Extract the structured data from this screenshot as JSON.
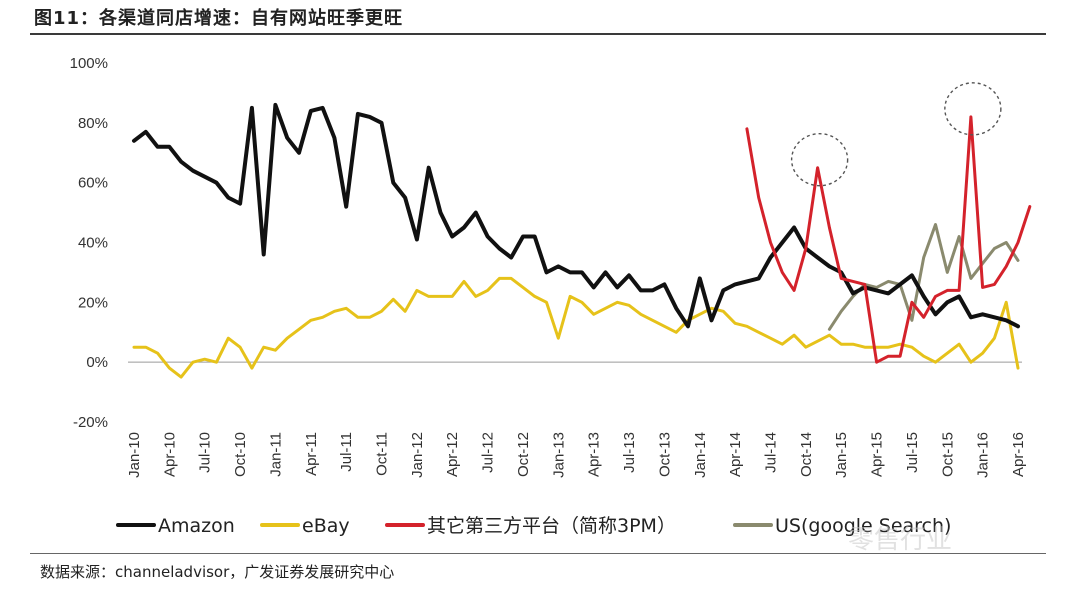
{
  "header": {
    "title": "图11：各渠道同店增速：自有网站旺季更旺"
  },
  "footer": {
    "source": "数据来源：channeladvisor，广发证券发展研究中心"
  },
  "chart_data": {
    "type": "line",
    "ylim": [
      -20,
      100
    ],
    "yticks": [
      -20,
      0,
      20,
      40,
      60,
      80,
      100
    ],
    "ytick_labels": [
      "-20%",
      "0%",
      "20%",
      "40%",
      "60%",
      "80%",
      "100%"
    ],
    "x_start_month_index": 0,
    "x_tick_every": 3,
    "x_tick_labels": [
      "Jan-10",
      "Apr-10",
      "Jul-10",
      "Oct-10",
      "Jan-11",
      "Apr-11",
      "Jul-11",
      "Oct-11",
      "Jan-12",
      "Apr-12",
      "Jul-12",
      "Oct-12",
      "Jan-13",
      "Apr-13",
      "Jul-13",
      "Oct-13",
      "Jan-14",
      "Apr-14",
      "Jul-14",
      "Oct-14",
      "Jan-15",
      "Apr-15",
      "Jul-15",
      "Oct-15",
      "Jan-16",
      "Apr-16"
    ],
    "grid": false,
    "legend_position": "bottom",
    "series": [
      {
        "name": "Amazon",
        "color": "#111111",
        "start_index": 0,
        "values": [
          74,
          77,
          72,
          72,
          67,
          64,
          62,
          60,
          55,
          53,
          85,
          36,
          86,
          75,
          70,
          84,
          85,
          75,
          52,
          83,
          82,
          80,
          60,
          55,
          41,
          65,
          50,
          42,
          45,
          50,
          42,
          38,
          35,
          42,
          42,
          30,
          32,
          30,
          30,
          25,
          30,
          25,
          29,
          24,
          24,
          26,
          18,
          12,
          28,
          14,
          24,
          26,
          27,
          28,
          35,
          40,
          45,
          38,
          35,
          32,
          30,
          23,
          25,
          24,
          23,
          26,
          29,
          22,
          16,
          20,
          22,
          15,
          16,
          15,
          14,
          12
        ]
      },
      {
        "name": "eBay",
        "color": "#e6c21a",
        "start_index": 0,
        "values": [
          5,
          5,
          3,
          -2,
          -5,
          0,
          1,
          0,
          8,
          5,
          -2,
          5,
          4,
          8,
          11,
          14,
          15,
          17,
          18,
          15,
          15,
          17,
          21,
          17,
          24,
          22,
          22,
          22,
          27,
          22,
          24,
          28,
          28,
          25,
          22,
          20,
          8,
          22,
          20,
          16,
          18,
          20,
          19,
          16,
          14,
          12,
          10,
          14,
          16,
          18,
          17,
          13,
          12,
          10,
          8,
          6,
          9,
          5,
          7,
          9,
          6,
          6,
          5,
          5,
          5,
          6,
          5,
          2,
          0,
          3,
          6,
          0,
          3,
          8,
          20,
          -2
        ]
      },
      {
        "name": "其它第三方平台（简称3PM）",
        "color": "#d4222b",
        "start_index": 52,
        "values": [
          78,
          55,
          40,
          30,
          24,
          38,
          65,
          45,
          28,
          27,
          26,
          0,
          2,
          2,
          20,
          15,
          22,
          24,
          24,
          82,
          25,
          26,
          32,
          40,
          52
        ]
      },
      {
        "name": "US(google Search)",
        "color": "#8a8a6e",
        "start_index": 59,
        "values": [
          11,
          17,
          22,
          26,
          25,
          27,
          26,
          14,
          35,
          46,
          30,
          42,
          28,
          33,
          38,
          40,
          34
        ]
      }
    ],
    "annotations": [
      "circle around 3PM peak near Oct-14",
      "circle around 3PM peak near Oct/Nov-15"
    ]
  },
  "watermark": {
    "text": "零售行业"
  }
}
